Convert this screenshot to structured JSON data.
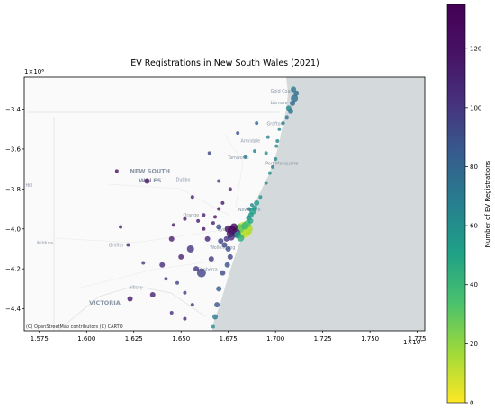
{
  "chart_data": {
    "type": "scatter",
    "title": "EV Registrations in New South Wales (2021)",
    "x_tick_labels": [
      "1.575",
      "1.600",
      "1.625",
      "1.650",
      "1.675",
      "1.700",
      "1.725",
      "1.750",
      "1.775"
    ],
    "x_ticks": [
      1.575,
      1.6,
      1.625,
      1.65,
      1.675,
      1.7,
      1.725,
      1.75,
      1.775
    ],
    "x_offset_label": "1×10⁷",
    "xlim": [
      1.567,
      1.779
    ],
    "y_tick_labels": [
      "−3.4",
      "−3.6",
      "−3.8",
      "−4.0",
      "−4.2",
      "−4.4"
    ],
    "y_ticks": [
      -3.4,
      -3.6,
      -3.8,
      -4.0,
      -4.2,
      -4.4
    ],
    "y_offset_label": "1×10⁶",
    "ylim": [
      -4.51,
      -3.24
    ],
    "colorbar": {
      "label": "Number of EV Registrations",
      "ticks": [
        0,
        20,
        40,
        60,
        80,
        100,
        120
      ],
      "range": [
        0,
        135
      ],
      "colormap": "viridis_r"
    },
    "attribution": "(C) OpenStreetMap contributors (C) CARTO",
    "basemap_labels": [
      {
        "text": "Gold Coast",
        "x": 1.7036,
        "y": -3.317
      },
      {
        "text": "Lismore",
        "x": 1.7018,
        "y": -3.376
      },
      {
        "text": "Grafton",
        "x": 1.6997,
        "y": -3.48
      },
      {
        "text": "Armidale",
        "x": 1.6867,
        "y": -3.567
      },
      {
        "text": "Tamworth",
        "x": 1.6803,
        "y": -3.65
      },
      {
        "text": "Port Macquarie",
        "x": 1.7033,
        "y": -3.68
      },
      {
        "text": "NEW SOUTH",
        "x": 1.6336,
        "y": -3.72
      },
      {
        "text": "WALES",
        "x": 1.6336,
        "y": -3.768
      },
      {
        "text": "Dubbo",
        "x": 1.6511,
        "y": -3.76
      },
      {
        "text": "Newcastle",
        "x": 1.6862,
        "y": -3.91
      },
      {
        "text": "Orange",
        "x": 1.6553,
        "y": -3.939
      },
      {
        "text": "Sydney",
        "x": 1.6736,
        "y": -4.01
      },
      {
        "text": "Mildura",
        "x": 1.578,
        "y": -4.078
      },
      {
        "text": "Griffith",
        "x": 1.6156,
        "y": -4.09
      },
      {
        "text": "Wollongong",
        "x": 1.672,
        "y": -4.1
      },
      {
        "text": "Canberra",
        "x": 1.664,
        "y": -4.211
      },
      {
        "text": "Albury",
        "x": 1.626,
        "y": -4.3
      },
      {
        "text": "VICTORIA",
        "x": 1.6096,
        "y": -4.38
      },
      {
        "text": "Hill",
        "x": 1.5695,
        "y": -3.79
      }
    ],
    "series": [
      {
        "points": [
          {
            "x": 1.6832,
            "y": -4.005,
            "v": 8,
            "s": 9
          },
          {
            "x": 1.6845,
            "y": -4.0,
            "v": 15,
            "s": 7
          },
          {
            "x": 1.682,
            "y": -4.015,
            "v": 12,
            "s": 7
          },
          {
            "x": 1.681,
            "y": -3.998,
            "v": 30,
            "s": 5
          },
          {
            "x": 1.679,
            "y": -4.02,
            "v": 110,
            "s": 5
          },
          {
            "x": 1.677,
            "y": -4.008,
            "v": 125,
            "s": 5
          },
          {
            "x": 1.676,
            "y": -4.025,
            "v": 115,
            "s": 4
          },
          {
            "x": 1.675,
            "y": -4.0,
            "v": 120,
            "s": 4
          },
          {
            "x": 1.678,
            "y": -3.99,
            "v": 128,
            "s": 4
          },
          {
            "x": 1.6765,
            "y": -4.04,
            "v": 105,
            "s": 4
          },
          {
            "x": 1.674,
            "y": -4.05,
            "v": 100,
            "s": 3
          },
          {
            "x": 1.68,
            "y": -4.03,
            "v": 55,
            "s": 4
          },
          {
            "x": 1.6815,
            "y": -4.045,
            "v": 45,
            "s": 4
          },
          {
            "x": 1.6838,
            "y": -3.985,
            "v": 40,
            "s": 4
          },
          {
            "x": 1.685,
            "y": -3.975,
            "v": 35,
            "s": 4
          },
          {
            "x": 1.6858,
            "y": -3.945,
            "v": 60,
            "s": 3
          },
          {
            "x": 1.687,
            "y": -3.93,
            "v": 55,
            "s": 3
          },
          {
            "x": 1.688,
            "y": -3.91,
            "v": 50,
            "s": 4
          },
          {
            "x": 1.689,
            "y": -3.895,
            "v": 52,
            "s": 3
          },
          {
            "x": 1.6868,
            "y": -3.96,
            "v": 48,
            "s": 3
          },
          {
            "x": 1.69,
            "y": -3.87,
            "v": 55,
            "s": 3
          },
          {
            "x": 1.6875,
            "y": -3.88,
            "v": 65,
            "s": 2
          },
          {
            "x": 1.686,
            "y": -3.9,
            "v": 70,
            "s": 2
          },
          {
            "x": 1.692,
            "y": -3.84,
            "v": 60,
            "s": 2
          },
          {
            "x": 1.695,
            "y": -3.77,
            "v": 62,
            "s": 2
          },
          {
            "x": 1.697,
            "y": -3.72,
            "v": 58,
            "s": 2
          },
          {
            "x": 1.6985,
            "y": -3.69,
            "v": 70,
            "s": 2
          },
          {
            "x": 1.7,
            "y": -3.65,
            "v": 65,
            "s": 2
          },
          {
            "x": 1.695,
            "y": -3.62,
            "v": 60,
            "s": 2
          },
          {
            "x": 1.7005,
            "y": -3.585,
            "v": 62,
            "s": 2
          },
          {
            "x": 1.701,
            "y": -3.56,
            "v": 65,
            "s": 2
          },
          {
            "x": 1.696,
            "y": -3.54,
            "v": 68,
            "s": 2
          },
          {
            "x": 1.702,
            "y": -3.5,
            "v": 66,
            "s": 2
          },
          {
            "x": 1.704,
            "y": -3.47,
            "v": 70,
            "s": 2
          },
          {
            "x": 1.706,
            "y": -3.44,
            "v": 72,
            "s": 2
          },
          {
            "x": 1.708,
            "y": -3.41,
            "v": 74,
            "s": 3
          },
          {
            "x": 1.709,
            "y": -3.37,
            "v": 80,
            "s": 3
          },
          {
            "x": 1.71,
            "y": -3.345,
            "v": 75,
            "s": 4
          },
          {
            "x": 1.711,
            "y": -3.32,
            "v": 78,
            "s": 3
          },
          {
            "x": 1.7095,
            "y": -3.3,
            "v": 70,
            "s": 3
          },
          {
            "x": 1.707,
            "y": -3.395,
            "v": 65,
            "s": 3
          },
          {
            "x": 1.689,
            "y": -3.61,
            "v": 68,
            "s": 2
          },
          {
            "x": 1.684,
            "y": -3.64,
            "v": 72,
            "s": 2
          },
          {
            "x": 1.676,
            "y": -3.8,
            "v": 110,
            "s": 2
          },
          {
            "x": 1.672,
            "y": -3.87,
            "v": 115,
            "s": 2
          },
          {
            "x": 1.67,
            "y": -3.9,
            "v": 120,
            "s": 2
          },
          {
            "x": 1.668,
            "y": -3.94,
            "v": 118,
            "s": 2
          },
          {
            "x": 1.667,
            "y": -3.97,
            "v": 112,
            "s": 2
          },
          {
            "x": 1.67,
            "y": -3.99,
            "v": 90,
            "s": 3
          },
          {
            "x": 1.671,
            "y": -4.06,
            "v": 95,
            "s": 3
          },
          {
            "x": 1.673,
            "y": -4.08,
            "v": 92,
            "s": 3
          },
          {
            "x": 1.675,
            "y": -4.1,
            "v": 90,
            "s": 3
          },
          {
            "x": 1.676,
            "y": -4.14,
            "v": 95,
            "s": 3
          },
          {
            "x": 1.6745,
            "y": -4.18,
            "v": 88,
            "s": 3
          },
          {
            "x": 1.672,
            "y": -4.22,
            "v": 92,
            "s": 3
          },
          {
            "x": 1.67,
            "y": -4.3,
            "v": 85,
            "s": 3
          },
          {
            "x": 1.669,
            "y": -4.38,
            "v": 88,
            "s": 3
          },
          {
            "x": 1.668,
            "y": -4.44,
            "v": 70,
            "s": 3
          },
          {
            "x": 1.667,
            "y": -4.49,
            "v": 60,
            "s": 2
          },
          {
            "x": 1.6608,
            "y": -4.22,
            "v": 95,
            "s": 5
          },
          {
            "x": 1.658,
            "y": -4.2,
            "v": 100,
            "s": 3
          },
          {
            "x": 1.655,
            "y": -4.1,
            "v": 100,
            "s": 4
          },
          {
            "x": 1.65,
            "y": -4.14,
            "v": 110,
            "s": 3
          },
          {
            "x": 1.645,
            "y": -4.05,
            "v": 112,
            "s": 3
          },
          {
            "x": 1.64,
            "y": -4.18,
            "v": 105,
            "s": 3
          },
          {
            "x": 1.63,
            "y": -4.17,
            "v": 100,
            "s": 2
          },
          {
            "x": 1.622,
            "y": -4.08,
            "v": 108,
            "s": 2
          },
          {
            "x": 1.618,
            "y": -3.99,
            "v": 110,
            "s": 2
          },
          {
            "x": 1.632,
            "y": -3.76,
            "v": 118,
            "s": 3
          },
          {
            "x": 1.616,
            "y": -3.71,
            "v": 122,
            "s": 2
          },
          {
            "x": 1.623,
            "y": -4.35,
            "v": 115,
            "s": 3
          },
          {
            "x": 1.635,
            "y": -4.33,
            "v": 110,
            "s": 3
          },
          {
            "x": 1.642,
            "y": -4.25,
            "v": 100,
            "s": 2
          },
          {
            "x": 1.648,
            "y": -4.27,
            "v": 95,
            "s": 2
          },
          {
            "x": 1.652,
            "y": -4.32,
            "v": 98,
            "s": 2
          },
          {
            "x": 1.656,
            "y": -4.38,
            "v": 102,
            "s": 2
          },
          {
            "x": 1.659,
            "y": -3.96,
            "v": 115,
            "s": 2
          },
          {
            "x": 1.662,
            "y": -3.93,
            "v": 112,
            "s": 2
          },
          {
            "x": 1.652,
            "y": -3.95,
            "v": 118,
            "s": 2
          },
          {
            "x": 1.646,
            "y": -3.98,
            "v": 110,
            "s": 2
          },
          {
            "x": 1.664,
            "y": -4.05,
            "v": 108,
            "s": 3
          },
          {
            "x": 1.662,
            "y": -4.0,
            "v": 120,
            "s": 2
          },
          {
            "x": 1.666,
            "y": -4.15,
            "v": 100,
            "s": 3
          },
          {
            "x": 1.652,
            "y": -4.45,
            "v": 108,
            "s": 2
          },
          {
            "x": 1.645,
            "y": -4.42,
            "v": 104,
            "s": 2
          },
          {
            "x": 1.67,
            "y": -3.76,
            "v": 98,
            "s": 2
          },
          {
            "x": 1.68,
            "y": -3.52,
            "v": 90,
            "s": 2
          },
          {
            "x": 1.665,
            "y": -3.62,
            "v": 95,
            "s": 2
          },
          {
            "x": 1.69,
            "y": -3.47,
            "v": 80,
            "s": 2
          },
          {
            "x": 1.656,
            "y": -3.84,
            "v": 112,
            "s": 2
          }
        ]
      }
    ]
  }
}
